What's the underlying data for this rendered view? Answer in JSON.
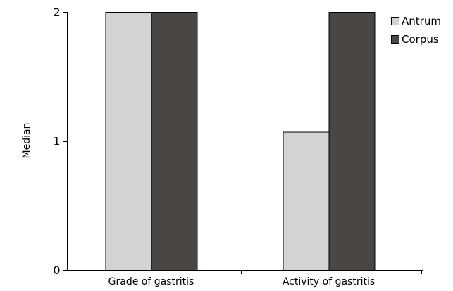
{
  "chart_data": {
    "type": "bar",
    "title": "",
    "xlabel": "",
    "ylabel": "Median",
    "categories": [
      "Grade of gastritis",
      "Activity of gastritis"
    ],
    "series": [
      {
        "name": "Antrum",
        "values": [
          2,
          1.07
        ],
        "color": "#d3d3d3"
      },
      {
        "name": "Corpus",
        "values": [
          2,
          2
        ],
        "color": "#4a4644"
      }
    ],
    "ylim": [
      0,
      2
    ],
    "yticks": [
      0,
      1,
      2
    ],
    "ytick_labels": [
      "0",
      "1",
      "2"
    ],
    "grid": false,
    "legend_position": "top-right"
  }
}
